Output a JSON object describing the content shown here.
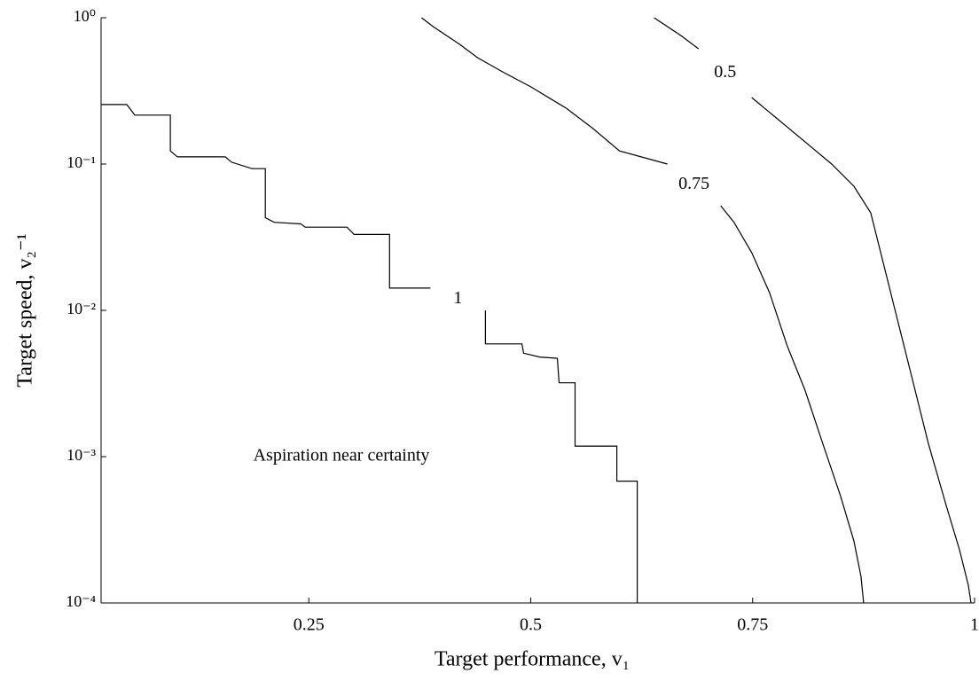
{
  "chart_data": {
    "type": "line",
    "xlabel": "Target performance, v₁",
    "ylabel": "Target speed, v₂⁻¹",
    "annotation": "Aspiration near certainty",
    "xlim": [
      0.016,
      1
    ],
    "xticks": [
      0.25,
      0.5,
      0.75,
      1
    ],
    "ylim": [
      0.0001,
      1
    ],
    "yscale": "log",
    "yticks": [
      {
        "value": 1,
        "label": "10⁰"
      },
      {
        "value": 0.1,
        "label": "10⁻¹"
      },
      {
        "value": 0.01,
        "label": "10⁻²"
      },
      {
        "value": 0.001,
        "label": "10⁻³"
      },
      {
        "value": 0.0001,
        "label": "10⁻⁴"
      }
    ],
    "series": [
      {
        "name": "1",
        "color": "#000000",
        "x": [
          0.016,
          0.045,
          0.054,
          0.094,
          0.094,
          0.102,
          0.156,
          0.163,
          0.186,
          0.201,
          0.201,
          0.211,
          0.241,
          0.246,
          0.293,
          0.301,
          0.341,
          0.341,
          0.387,
          null,
          0.449,
          0.449,
          0.49,
          0.492,
          0.51,
          0.53,
          0.532,
          0.55,
          0.55,
          0.597,
          0.597,
          0.62,
          0.62
        ],
        "values": [
          0.255,
          0.255,
          0.216,
          0.216,
          0.123,
          0.112,
          0.112,
          0.103,
          0.093,
          0.093,
          0.043,
          0.04,
          0.039,
          0.037,
          0.037,
          0.033,
          0.033,
          0.0142,
          0.0142,
          null,
          0.01,
          0.0059,
          0.0059,
          0.0051,
          0.0048,
          0.0047,
          0.0032,
          0.0032,
          0.00118,
          0.00118,
          0.00068,
          0.00068,
          0.0001
        ]
      },
      {
        "name": "0.75",
        "color": "#000000",
        "x": [
          0.377,
          0.39,
          0.42,
          0.44,
          0.47,
          0.5,
          0.54,
          0.57,
          0.6,
          0.654,
          null,
          0.714,
          0.729,
          0.749,
          0.769,
          0.789,
          0.809,
          0.829,
          0.849,
          0.864,
          0.872,
          0.875
        ],
        "values": [
          1,
          0.87,
          0.658,
          0.534,
          0.421,
          0.337,
          0.241,
          0.175,
          0.123,
          0.1,
          null,
          0.0519,
          0.04,
          0.0248,
          0.0132,
          0.0057,
          0.00285,
          0.00123,
          0.00054,
          0.000266,
          0.000152,
          0.0001
        ]
      },
      {
        "name": "0.5",
        "color": "#000000",
        "x": [
          0.639,
          0.669,
          0.689,
          null,
          0.749,
          0.779,
          0.809,
          0.839,
          0.864,
          0.883,
          0.893,
          0.908,
          0.928,
          0.948,
          0.968,
          0.983,
          0.993,
          0.996
        ],
        "values": [
          1,
          0.756,
          0.614,
          null,
          0.285,
          0.201,
          0.142,
          0.1,
          0.0705,
          0.0464,
          0.0266,
          0.0115,
          0.00377,
          0.00123,
          0.000464,
          0.000231,
          0.000132,
          0.0001
        ]
      }
    ]
  }
}
